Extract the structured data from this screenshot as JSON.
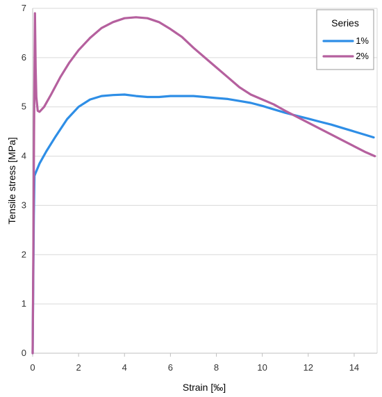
{
  "chart_data": {
    "type": "line",
    "xlabel": "Strain [‰]",
    "ylabel": "Tensile stress [MPa]",
    "xlim": [
      0,
      15
    ],
    "ylim": [
      0,
      7
    ],
    "xticks": [
      0,
      2,
      4,
      6,
      8,
      10,
      12,
      14
    ],
    "yticks": [
      0,
      1,
      2,
      3,
      4,
      5,
      6,
      7
    ],
    "grid": "horizontal",
    "legend": {
      "title": "Series",
      "position": "top-right"
    },
    "series": [
      {
        "name": "1%",
        "color": "#2e8ee6",
        "points": [
          [
            0,
            0
          ],
          [
            0.02,
            1.2
          ],
          [
            0.05,
            2.8
          ],
          [
            0.08,
            3.6
          ],
          [
            0.12,
            3.65
          ],
          [
            0.3,
            3.85
          ],
          [
            0.6,
            4.1
          ],
          [
            1.0,
            4.4
          ],
          [
            1.5,
            4.75
          ],
          [
            2.0,
            5.0
          ],
          [
            2.5,
            5.15
          ],
          [
            3.0,
            5.22
          ],
          [
            3.5,
            5.24
          ],
          [
            4.0,
            5.25
          ],
          [
            4.5,
            5.22
          ],
          [
            5.0,
            5.2
          ],
          [
            5.5,
            5.2
          ],
          [
            6.0,
            5.22
          ],
          [
            6.5,
            5.22
          ],
          [
            7.0,
            5.22
          ],
          [
            7.5,
            5.2
          ],
          [
            8.0,
            5.18
          ],
          [
            8.5,
            5.16
          ],
          [
            9.0,
            5.12
          ],
          [
            9.5,
            5.08
          ],
          [
            10.0,
            5.02
          ],
          [
            10.5,
            4.95
          ],
          [
            11.0,
            4.88
          ],
          [
            11.5,
            4.82
          ],
          [
            12.0,
            4.76
          ],
          [
            12.5,
            4.7
          ],
          [
            13.0,
            4.64
          ],
          [
            13.5,
            4.57
          ],
          [
            14.0,
            4.5
          ],
          [
            14.5,
            4.43
          ],
          [
            14.85,
            4.38
          ]
        ]
      },
      {
        "name": "2%",
        "color": "#b5609e",
        "points": [
          [
            0,
            0
          ],
          [
            0.03,
            2.0
          ],
          [
            0.06,
            4.5
          ],
          [
            0.1,
            6.9
          ],
          [
            0.13,
            5.8
          ],
          [
            0.16,
            5.2
          ],
          [
            0.22,
            4.92
          ],
          [
            0.3,
            4.9
          ],
          [
            0.5,
            5.0
          ],
          [
            0.8,
            5.25
          ],
          [
            1.2,
            5.6
          ],
          [
            1.6,
            5.9
          ],
          [
            2.0,
            6.15
          ],
          [
            2.5,
            6.4
          ],
          [
            3.0,
            6.6
          ],
          [
            3.5,
            6.72
          ],
          [
            4.0,
            6.8
          ],
          [
            4.5,
            6.82
          ],
          [
            5.0,
            6.8
          ],
          [
            5.5,
            6.72
          ],
          [
            6.0,
            6.58
          ],
          [
            6.5,
            6.42
          ],
          [
            7.0,
            6.2
          ],
          [
            7.5,
            6.0
          ],
          [
            8.0,
            5.8
          ],
          [
            8.5,
            5.6
          ],
          [
            9.0,
            5.4
          ],
          [
            9.5,
            5.25
          ],
          [
            10.0,
            5.15
          ],
          [
            10.5,
            5.05
          ],
          [
            11.0,
            4.92
          ],
          [
            11.5,
            4.8
          ],
          [
            12.0,
            4.68
          ],
          [
            12.5,
            4.56
          ],
          [
            13.0,
            4.44
          ],
          [
            13.5,
            4.32
          ],
          [
            14.0,
            4.2
          ],
          [
            14.5,
            4.08
          ],
          [
            14.9,
            4.0
          ]
        ]
      }
    ]
  }
}
